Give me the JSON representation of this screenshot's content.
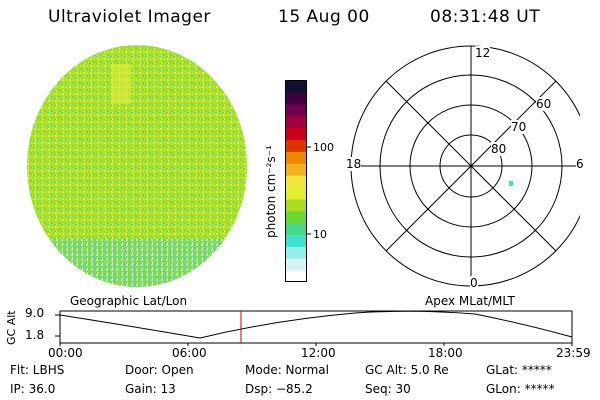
{
  "header": {
    "instrument": "Ultraviolet Imager",
    "date": "15 Aug 00",
    "time": "08:31:48 UT"
  },
  "colorbar": {
    "unit_label": "photon cm⁻²s⁻¹",
    "tick_100": "100",
    "tick_10": "10",
    "colors": [
      "#ffffff",
      "#d6f4f4",
      "#98ecec",
      "#40e0d0",
      "#46d88a",
      "#6ad838",
      "#aadd22",
      "#e6ee33",
      "#f0e640",
      "#f0b020",
      "#ee8800",
      "#dd3300",
      "#c8001e",
      "#a00040",
      "#700050",
      "#400040",
      "#101030"
    ]
  },
  "polar_plot": {
    "label_noon": "12",
    "label_midnight": "0",
    "label_dusk": "18",
    "label_dawn": "6",
    "lat_60": "60",
    "lat_70": "70",
    "lat_80": "80"
  },
  "orbit_plot": {
    "left_title": "Geographic Lat/Lon",
    "right_title": "Apex MLat/MLT",
    "y_axis_label": "GC Alt",
    "y_max": "9.0",
    "y_min": "1.8",
    "x_ticks": [
      "00:00",
      "06:00",
      "12:00",
      "18:00",
      "23:59"
    ],
    "current_marker_color": "#cc0000"
  },
  "info": {
    "flt": "Flt: LBHS",
    "ip": "IP: 36.0",
    "door": "Door: Open",
    "gain": "Gain: 13",
    "mode": "Mode: Normal",
    "dsp": "Dsp:  −85.2",
    "gc_alt": "GC Alt: 5.0 Re",
    "seq": "Seq: 30",
    "glat": "GLat: *****",
    "glon": "GLon: *****"
  }
}
